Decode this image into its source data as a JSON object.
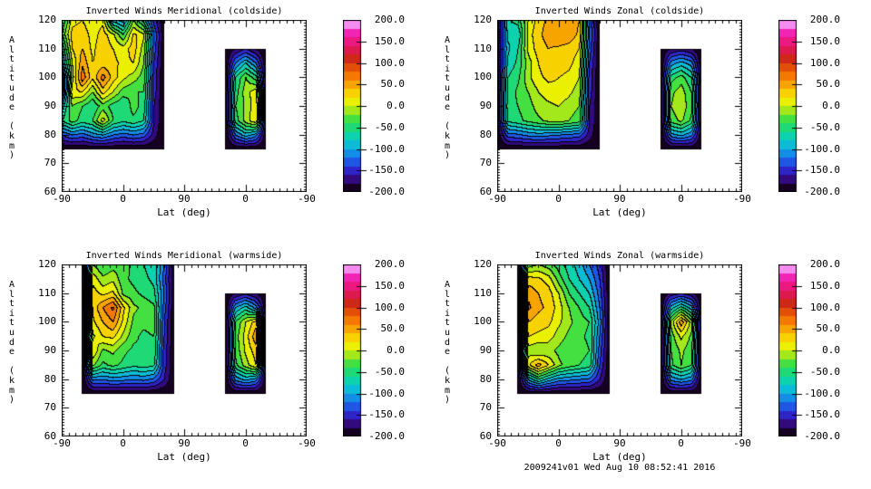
{
  "page": {
    "background": "#ffffff",
    "footer": "2009241v01 Wed Aug 10 08:52:41 2016"
  },
  "axes": {
    "x": {
      "label": "Lat (deg)",
      "range": [
        0,
        360
      ],
      "major_ticks": [
        {
          "pos": 0,
          "label": "-90"
        },
        {
          "pos": 90,
          "label": "0"
        },
        {
          "pos": 180,
          "label": "90"
        },
        {
          "pos": 270,
          "label": "0"
        },
        {
          "pos": 360,
          "label": "-90"
        }
      ],
      "minor_step": 10
    },
    "y": {
      "label": "Altitude (km)",
      "range": [
        60,
        120
      ],
      "major_ticks": [
        {
          "pos": 120,
          "label": "120"
        },
        {
          "pos": 110,
          "label": "110"
        },
        {
          "pos": 100,
          "label": "100"
        },
        {
          "pos": 90,
          "label": "90"
        },
        {
          "pos": 80,
          "label": "80"
        },
        {
          "pos": 70,
          "label": "70"
        },
        {
          "pos": 60,
          "label": "60"
        }
      ],
      "minor_step": 1
    }
  },
  "colorbar": {
    "range": [
      -200,
      200
    ],
    "ticks": [
      {
        "value": 200,
        "label": "200.0"
      },
      {
        "value": 150,
        "label": "150.0"
      },
      {
        "value": 100,
        "label": "100.0"
      },
      {
        "value": 50,
        "label": "50.0"
      },
      {
        "value": 0,
        "label": "0.0"
      },
      {
        "value": -50,
        "label": "-50.0"
      },
      {
        "value": -100,
        "label": "-100.0"
      },
      {
        "value": -150,
        "label": "-150.0"
      },
      {
        "value": -200,
        "label": "-200.0"
      }
    ]
  },
  "palette": {
    "vmin": -200,
    "vmax": 200,
    "band_step": 20,
    "contour_line_color": "#000000",
    "band_colors": [
      "#150021",
      "#320a7e",
      "#2f24c8",
      "#2056e4",
      "#128ee6",
      "#0cbcd6",
      "#0ed2ae",
      "#1fd876",
      "#44e042",
      "#a2e81a",
      "#eaf000",
      "#f8d200",
      "#f8a400",
      "#f57800",
      "#e44f08",
      "#cd2818",
      "#dc1a4e",
      "#ec1a80",
      "#f224b4",
      "#f48cf0"
    ]
  },
  "chart_data": [
    {
      "type": "heatmap",
      "subtype": "filled-contour",
      "title": "Inverted Winds Meridional (coldside)",
      "xlabel": "Lat (deg)",
      "ylabel": "Altitude (km)",
      "value_range": [
        -200,
        200
      ],
      "contour_interval": 20,
      "blocks": [
        {
          "t0": 0,
          "dt": 15,
          "a0": 75,
          "da": 5,
          "v": [
            [
              -200,
              -200,
              -200,
              -200,
              -200,
              -200,
              -200,
              -200,
              -200,
              -200,
              -200
            ],
            [
              -140,
              -120,
              -130,
              -110,
              -100,
              -120,
              -130,
              -120,
              -130,
              -170,
              -200
            ],
            [
              -60,
              -30,
              -50,
              -40,
              10,
              -40,
              -55,
              -45,
              -60,
              -160,
              -200
            ],
            [
              -90,
              -20,
              -40,
              -60,
              -30,
              -50,
              -60,
              -30,
              -50,
              -160,
              -200
            ],
            [
              -175,
              15,
              20,
              -20,
              30,
              0,
              -30,
              -40,
              -40,
              -150,
              -200
            ],
            [
              -170,
              -10,
              75,
              25,
              70,
              30,
              5,
              -10,
              -30,
              -150,
              -200
            ],
            [
              -110,
              0,
              55,
              20,
              30,
              25,
              15,
              20,
              -20,
              -140,
              -200
            ],
            [
              -80,
              20,
              40,
              15,
              35,
              20,
              10,
              30,
              -10,
              -130,
              -200
            ],
            [
              -40,
              30,
              35,
              10,
              30,
              5,
              -40,
              25,
              5,
              -120,
              -200
            ],
            [
              -60,
              10,
              20,
              0,
              15,
              -90,
              -110,
              -20,
              -70,
              -150,
              -200
            ]
          ]
        },
        {
          "t0": 240,
          "dt": 15,
          "a0": 75,
          "da": 5,
          "v": [
            [
              -200,
              -200,
              -200,
              -200,
              -200
            ],
            [
              -200,
              -120,
              -90,
              -110,
              -200
            ],
            [
              -200,
              -50,
              -10,
              18,
              -200
            ],
            [
              -200,
              -40,
              -15,
              15,
              -200
            ],
            [
              -200,
              -50,
              -8,
              12,
              -200
            ],
            [
              -200,
              -60,
              -20,
              -50,
              -200
            ],
            [
              -200,
              -120,
              -80,
              -120,
              -200
            ],
            [
              -200,
              -180,
              -160,
              -180,
              -200
            ]
          ]
        }
      ]
    },
    {
      "type": "heatmap",
      "subtype": "filled-contour",
      "title": "Inverted Winds Zonal (coldside)",
      "xlabel": "Lat (deg)",
      "ylabel": "Altitude (km)",
      "value_range": [
        -200,
        200
      ],
      "contour_interval": 20,
      "blocks": [
        {
          "t0": 0,
          "dt": 15,
          "a0": 75,
          "da": 5,
          "v": [
            [
              -200,
              -200,
              -200,
              -200,
              -200,
              -200,
              -200,
              -200,
              -200,
              -200,
              -200
            ],
            [
              -195,
              -130,
              -125,
              -115,
              -110,
              -115,
              -120,
              -125,
              -130,
              -170,
              -200
            ],
            [
              -190,
              -55,
              -45,
              -35,
              -25,
              -15,
              -10,
              -20,
              -30,
              -160,
              -200
            ],
            [
              -190,
              -50,
              -40,
              -30,
              -10,
              -5,
              0,
              -10,
              -20,
              -160,
              -200
            ],
            [
              -190,
              -55,
              -35,
              -20,
              0,
              10,
              15,
              5,
              -10,
              -150,
              -200
            ],
            [
              -190,
              -60,
              -45,
              -5,
              15,
              25,
              20,
              15,
              0,
              -150,
              -200
            ],
            [
              -190,
              -75,
              -55,
              -10,
              20,
              35,
              30,
              25,
              10,
              -140,
              -200
            ],
            [
              -190,
              -85,
              -60,
              5,
              30,
              40,
              35,
              30,
              20,
              -130,
              -200
            ],
            [
              -190,
              -75,
              -80,
              10,
              35,
              50,
              60,
              55,
              35,
              -120,
              -200
            ],
            [
              -195,
              -65,
              -50,
              0,
              30,
              45,
              55,
              60,
              40,
              -130,
              -200
            ]
          ]
        },
        {
          "t0": 240,
          "dt": 15,
          "a0": 75,
          "da": 5,
          "v": [
            [
              -200,
              -200,
              -200,
              -200,
              -200
            ],
            [
              -200,
              -110,
              -95,
              -115,
              -200
            ],
            [
              -200,
              -30,
              -15,
              -45,
              -200
            ],
            [
              -200,
              -20,
              -5,
              -35,
              -200
            ],
            [
              -200,
              -25,
              -10,
              -40,
              -200
            ],
            [
              -200,
              -50,
              -30,
              -60,
              -200
            ],
            [
              -200,
              -110,
              -90,
              -110,
              -200
            ],
            [
              -200,
              -180,
              -170,
              -180,
              -200
            ]
          ]
        }
      ]
    },
    {
      "type": "heatmap",
      "subtype": "filled-contour",
      "title": "Inverted Winds Meridional (warmside)",
      "xlabel": "Lat (deg)",
      "ylabel": "Altitude (km)",
      "value_range": [
        -200,
        200
      ],
      "contour_interval": 20,
      "blocks": [
        {
          "t0": 30,
          "dt": 15,
          "a0": 75,
          "da": 5,
          "v": [
            [
              -200,
              -200,
              -200,
              -200,
              -200,
              -200,
              -200,
              -200,
              -200,
              -200
            ],
            [
              -200,
              -115,
              -120,
              -110,
              -115,
              -120,
              -115,
              -125,
              -160,
              -200
            ],
            [
              -200,
              -15,
              -45,
              -35,
              -45,
              -55,
              -50,
              -55,
              -150,
              -200
            ],
            [
              -200,
              20,
              -25,
              -15,
              -35,
              -45,
              -40,
              -45,
              -150,
              -200
            ],
            [
              -200,
              -5,
              20,
              25,
              -5,
              -35,
              -45,
              -40,
              -140,
              -200
            ],
            [
              -200,
              15,
              40,
              60,
              15,
              -25,
              -35,
              -30,
              -140,
              -200
            ],
            [
              -200,
              25,
              60,
              85,
              25,
              -15,
              -25,
              -35,
              -130,
              -200
            ],
            [
              -200,
              30,
              15,
              25,
              -25,
              -35,
              -45,
              -55,
              -120,
              -200
            ],
            [
              -200,
              15,
              -15,
              -5,
              -35,
              -45,
              -55,
              -65,
              -130,
              -200
            ],
            [
              -200,
              -20,
              -40,
              -30,
              -25,
              -50,
              -60,
              -70,
              -120,
              -200
            ]
          ]
        },
        {
          "t0": 240,
          "dt": 15,
          "a0": 75,
          "da": 5,
          "v": [
            [
              -200,
              -200,
              -200,
              -200,
              -200
            ],
            [
              -200,
              -115,
              -95,
              -110,
              -200
            ],
            [
              -200,
              -45,
              -10,
              20,
              -200
            ],
            [
              -200,
              -35,
              5,
              30,
              -200
            ],
            [
              -200,
              -30,
              10,
              55,
              -200
            ],
            [
              -200,
              -40,
              0,
              30,
              -200
            ],
            [
              -200,
              -100,
              -70,
              -110,
              -200
            ],
            [
              -200,
              -180,
              -165,
              -180,
              -200
            ]
          ]
        }
      ]
    },
    {
      "type": "heatmap",
      "subtype": "filled-contour",
      "title": "Inverted Winds Zonal (warmside)",
      "xlabel": "Lat (deg)",
      "ylabel": "Altitude (km)",
      "value_range": [
        -200,
        200
      ],
      "contour_interval": 20,
      "blocks": [
        {
          "t0": 30,
          "dt": 15,
          "a0": 75,
          "da": 5,
          "v": [
            [
              -200,
              -200,
              -200,
              -200,
              -200,
              -200,
              -200,
              -200,
              -200,
              -200
            ],
            [
              -200,
              -100,
              -60,
              -90,
              -110,
              -115,
              -120,
              -125,
              -160,
              -200
            ],
            [
              -200,
              15,
              50,
              20,
              -15,
              -30,
              -40,
              -50,
              -140,
              -200
            ],
            [
              -200,
              -10,
              -20,
              -15,
              -25,
              -35,
              -30,
              -40,
              -130,
              -200
            ],
            [
              -200,
              20,
              15,
              10,
              -10,
              -25,
              -35,
              -45,
              -120,
              -200
            ],
            [
              -200,
              40,
              30,
              25,
              5,
              -15,
              -30,
              -40,
              -110,
              -200
            ],
            [
              -200,
              65,
              45,
              35,
              10,
              -20,
              -40,
              -60,
              -120,
              -200
            ],
            [
              -200,
              55,
              40,
              30,
              0,
              -40,
              -60,
              -80,
              -130,
              -200
            ],
            [
              -200,
              30,
              25,
              10,
              -30,
              -60,
              -80,
              -100,
              -140,
              -200
            ],
            [
              -200,
              -30,
              -20,
              -30,
              -50,
              -70,
              -90,
              -120,
              -150,
              -200
            ]
          ]
        },
        {
          "t0": 240,
          "dt": 15,
          "a0": 75,
          "da": 5,
          "v": [
            [
              -200,
              -200,
              -200,
              -200,
              -200
            ],
            [
              -200,
              -115,
              -100,
              -115,
              -200
            ],
            [
              -200,
              -45,
              -20,
              -40,
              -200
            ],
            [
              -200,
              -40,
              -15,
              -35,
              -200
            ],
            [
              -200,
              -30,
              5,
              -25,
              -200
            ],
            [
              -200,
              -15,
              55,
              -10,
              -200
            ],
            [
              -200,
              -90,
              -50,
              -90,
              -200
            ],
            [
              -200,
              -175,
              -160,
              -175,
              -200
            ]
          ]
        }
      ]
    }
  ]
}
